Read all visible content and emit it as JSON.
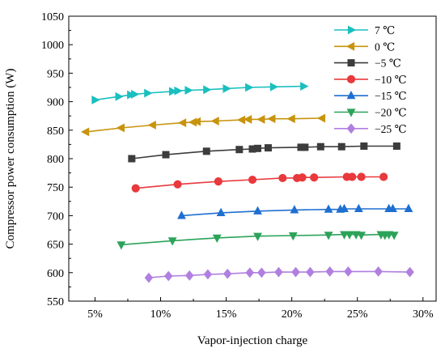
{
  "chart_data": {
    "type": "line",
    "xlabel": "Vapor-injection charge",
    "ylabel": "Compressor power consumption (W)",
    "xlim": [
      0.03,
      0.31
    ],
    "ylim": [
      550,
      1050
    ],
    "xticks": [
      0.05,
      0.1,
      0.15,
      0.2,
      0.25,
      0.3
    ],
    "xtick_labels": [
      "5%",
      "10%",
      "15%",
      "20%",
      "25%",
      "30%"
    ],
    "yticks": [
      550,
      600,
      650,
      700,
      750,
      800,
      850,
      900,
      950,
      1000,
      1050
    ],
    "ytick_labels": [
      "550",
      "600",
      "650",
      "700",
      "750",
      "800",
      "850",
      "900",
      "950",
      "1000",
      "1050"
    ],
    "grid": false,
    "legend_position": "top-right",
    "series": [
      {
        "name": "7 ℃",
        "color": "#1ABFBF",
        "marker": "triangle-right",
        "points": [
          [
            0.05,
            903
          ],
          [
            0.068,
            909
          ],
          [
            0.077,
            912
          ],
          [
            0.08,
            913
          ],
          [
            0.09,
            915
          ],
          [
            0.109,
            918
          ],
          [
            0.113,
            919
          ],
          [
            0.121,
            920
          ],
          [
            0.135,
            921
          ],
          [
            0.15,
            923
          ],
          [
            0.167,
            925
          ],
          [
            0.186,
            926
          ],
          [
            0.209,
            927
          ]
        ]
      },
      {
        "name": "0 ℃",
        "color": "#C8940E",
        "marker": "triangle-left",
        "points": [
          [
            0.043,
            847
          ],
          [
            0.07,
            854
          ],
          [
            0.094,
            859
          ],
          [
            0.117,
            863
          ],
          [
            0.125,
            864
          ],
          [
            0.128,
            865
          ],
          [
            0.142,
            866
          ],
          [
            0.162,
            868
          ],
          [
            0.167,
            869
          ],
          [
            0.177,
            869
          ],
          [
            0.185,
            870
          ],
          [
            0.2,
            870
          ],
          [
            0.223,
            871
          ]
        ]
      },
      {
        "name": "−5 ℃",
        "color": "#3C3C3C",
        "marker": "square",
        "points": [
          [
            0.078,
            800
          ],
          [
            0.104,
            807
          ],
          [
            0.135,
            813
          ],
          [
            0.16,
            816
          ],
          [
            0.17,
            817
          ],
          [
            0.174,
            818
          ],
          [
            0.182,
            819
          ],
          [
            0.207,
            820
          ],
          [
            0.21,
            820
          ],
          [
            0.222,
            821
          ],
          [
            0.238,
            821
          ],
          [
            0.255,
            822
          ],
          [
            0.28,
            822
          ]
        ]
      },
      {
        "name": "−10 ℃",
        "color": "#E8393D",
        "marker": "circle",
        "points": [
          [
            0.081,
            748
          ],
          [
            0.113,
            755
          ],
          [
            0.144,
            760
          ],
          [
            0.17,
            763
          ],
          [
            0.193,
            766
          ],
          [
            0.204,
            766
          ],
          [
            0.208,
            767
          ],
          [
            0.217,
            767
          ],
          [
            0.242,
            768
          ],
          [
            0.246,
            768
          ],
          [
            0.253,
            768
          ],
          [
            0.27,
            768
          ]
        ]
      },
      {
        "name": "−15 ℃",
        "color": "#1F6FD1",
        "marker": "triangle-up",
        "points": [
          [
            0.116,
            700
          ],
          [
            0.146,
            705
          ],
          [
            0.174,
            708
          ],
          [
            0.202,
            710
          ],
          [
            0.228,
            711
          ],
          [
            0.237,
            711
          ],
          [
            0.24,
            712
          ],
          [
            0.251,
            712
          ],
          [
            0.274,
            712
          ],
          [
            0.277,
            712
          ],
          [
            0.289,
            712
          ]
        ]
      },
      {
        "name": "−20 ℃",
        "color": "#2DA35A",
        "marker": "triangle-down",
        "points": [
          [
            0.07,
            649
          ],
          [
            0.109,
            656
          ],
          [
            0.143,
            661
          ],
          [
            0.174,
            664
          ],
          [
            0.201,
            665
          ],
          [
            0.228,
            666
          ],
          [
            0.24,
            667
          ],
          [
            0.244,
            667
          ],
          [
            0.249,
            667
          ],
          [
            0.253,
            666
          ],
          [
            0.268,
            667
          ],
          [
            0.271,
            666
          ],
          [
            0.274,
            667
          ],
          [
            0.278,
            666
          ]
        ]
      },
      {
        "name": "−25 ℃",
        "color": "#B07FE0",
        "marker": "diamond",
        "points": [
          [
            0.091,
            591
          ],
          [
            0.106,
            594
          ],
          [
            0.122,
            595
          ],
          [
            0.136,
            597
          ],
          [
            0.151,
            598
          ],
          [
            0.168,
            600
          ],
          [
            0.177,
            600
          ],
          [
            0.19,
            601
          ],
          [
            0.203,
            601
          ],
          [
            0.214,
            601
          ],
          [
            0.229,
            602
          ],
          [
            0.243,
            602
          ],
          [
            0.266,
            602
          ],
          [
            0.29,
            601
          ]
        ]
      }
    ]
  }
}
